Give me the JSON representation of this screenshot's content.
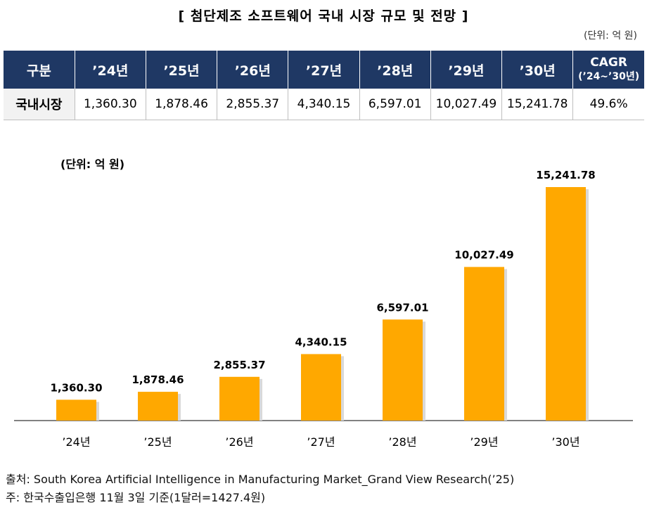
{
  "title": "[ 첨단제조 소프트웨어 국내 시장 규모 및 전망 ]",
  "unit_top": "(단위: 억 원)",
  "table": {
    "headers": [
      "구분",
      "’24년",
      "’25년",
      "’26년",
      "’27년",
      "’28년",
      "’29년",
      "’30년"
    ],
    "cagr_header": "CAGR",
    "cagr_sub": "(’24~’30년)",
    "row_label": "국내시장",
    "row_values": [
      "1,360.30",
      "1,878.46",
      "2,855.37",
      "4,340.15",
      "6,597.01",
      "10,027.49",
      "15,241.78",
      "49.6%"
    ]
  },
  "chart_data": {
    "type": "bar",
    "unit_label": "(단위: 억 원)",
    "categories": [
      "’24년",
      "’25년",
      "’26년",
      "’27년",
      "’28년",
      "’29년",
      "’30년"
    ],
    "values": [
      1360.3,
      1878.46,
      2855.37,
      4340.15,
      6597.01,
      10027.49,
      15241.78
    ],
    "value_labels": [
      "1,360.30",
      "1,878.46",
      "2,855.37",
      "4,340.15",
      "6,597.01",
      "10,027.49",
      "15,241.78"
    ],
    "ylim": [
      0,
      15241.78
    ],
    "grid": false,
    "bar_color": "#ffa800",
    "bar_shadow": "#d9d9d9",
    "axis_color": "#595959"
  },
  "footer": {
    "source": "출처: South Korea Artificial Intelligence in Manufacturing Market_Grand View Research(’25)",
    "note": "주: 한국수출입은행 11월 3일 기준(1달러=1427.4원)"
  },
  "colors": {
    "header_bg": "#1f3864",
    "header_text": "#ffffff"
  }
}
